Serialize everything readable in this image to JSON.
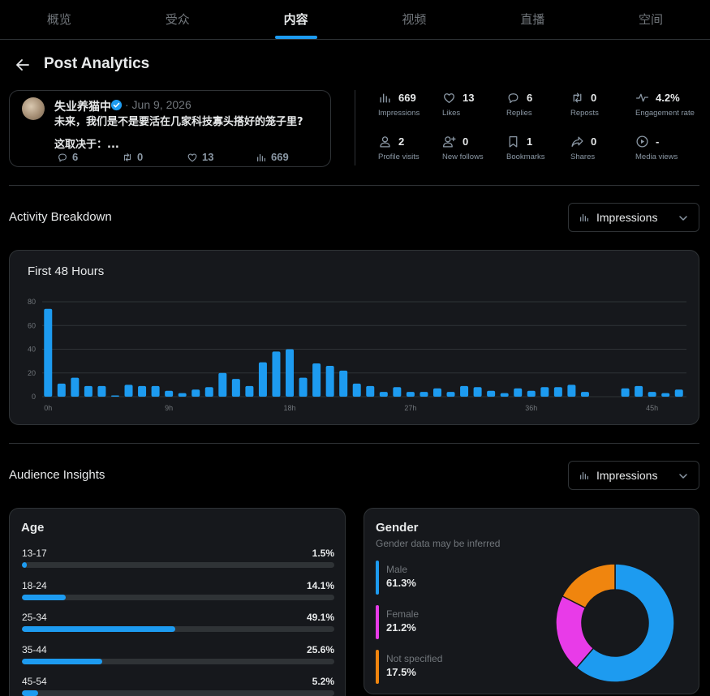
{
  "tabs": [
    {
      "label": "概览",
      "active": false
    },
    {
      "label": "受众",
      "active": false
    },
    {
      "label": "内容",
      "active": true
    },
    {
      "label": "视频",
      "active": false
    },
    {
      "label": "直播",
      "active": false
    },
    {
      "label": "空间",
      "active": false
    }
  ],
  "header": {
    "title": "Post Analytics"
  },
  "post": {
    "author": "失业养猫中",
    "date": "· Jun 9, 2026",
    "text_line1": "未来，我们是不是要活在几家科技寡头搭好的笼子里?",
    "text_line2": "这取决于：...",
    "stats": {
      "replies": "6",
      "reposts": "0",
      "likes": "13",
      "views": "669"
    }
  },
  "metrics": [
    {
      "icon": "bar-chart-icon",
      "value": "669",
      "label": "Impressions"
    },
    {
      "icon": "heart-icon",
      "value": "13",
      "label": "Likes"
    },
    {
      "icon": "reply-icon",
      "value": "6",
      "label": "Replies"
    },
    {
      "icon": "repost-icon",
      "value": "0",
      "label": "Reposts"
    },
    {
      "icon": "pulse-icon",
      "value": "4.2%",
      "label": "Engagement rate"
    },
    {
      "icon": "person-icon",
      "value": "2",
      "label": "Profile visits"
    },
    {
      "icon": "add-person-icon",
      "value": "0",
      "label": "New follows"
    },
    {
      "icon": "bookmark-icon",
      "value": "1",
      "label": "Bookmarks"
    },
    {
      "icon": "share-icon",
      "value": "0",
      "label": "Shares"
    },
    {
      "icon": "play-icon",
      "value": "-",
      "label": "Media views"
    }
  ],
  "activity": {
    "title": "Activity Breakdown",
    "dropdown_label": "Impressions"
  },
  "chart_data": {
    "type": "bar",
    "title": "First 48 Hours",
    "xlabel": "",
    "ylabel": "",
    "ylim": [
      0,
      80
    ],
    "yticks": [
      0,
      20,
      40,
      60,
      80
    ],
    "xtick_labels": [
      "0h",
      "9h",
      "18h",
      "27h",
      "36h",
      "45h"
    ],
    "xtick_hours": [
      0,
      9,
      18,
      27,
      36,
      45
    ],
    "grid": true,
    "color": "#1d9bf0",
    "hours": [
      0,
      1,
      2,
      3,
      4,
      5,
      6,
      7,
      8,
      9,
      10,
      11,
      12,
      13,
      14,
      15,
      16,
      17,
      18,
      19,
      20,
      21,
      22,
      23,
      24,
      25,
      26,
      27,
      28,
      29,
      30,
      31,
      32,
      33,
      34,
      35,
      36,
      37,
      38,
      39,
      40,
      41,
      42,
      43,
      44,
      45,
      46,
      47
    ],
    "values": [
      74,
      11,
      16,
      9,
      9,
      1,
      10,
      9,
      9,
      5,
      3,
      6,
      8,
      20,
      15,
      9,
      29,
      38,
      40,
      16,
      28,
      26,
      22,
      11,
      9,
      4,
      8,
      4,
      4,
      7,
      4,
      9,
      8,
      5,
      3,
      7,
      5,
      8,
      8,
      10,
      4,
      0,
      0,
      7,
      9,
      4,
      3,
      6
    ]
  },
  "audience": {
    "title": "Audience Insights",
    "dropdown_label": "Impressions"
  },
  "age": {
    "title": "Age",
    "rows": [
      {
        "label": "13-17",
        "pct": "1.5%",
        "value": 1.5
      },
      {
        "label": "18-24",
        "pct": "14.1%",
        "value": 14.1
      },
      {
        "label": "25-34",
        "pct": "49.1%",
        "value": 49.1
      },
      {
        "label": "35-44",
        "pct": "25.6%",
        "value": 25.6
      },
      {
        "label": "45-54",
        "pct": "5.2%",
        "value": 5.2
      }
    ]
  },
  "gender": {
    "title": "Gender",
    "subtitle": "Gender data may be inferred",
    "items": [
      {
        "label": "Male",
        "pct": "61.3%",
        "value": 61.3,
        "color": "#1d9bf0"
      },
      {
        "label": "Female",
        "pct": "21.2%",
        "value": 21.2,
        "color": "#e83be8"
      },
      {
        "label": "Not specified",
        "pct": "17.5%",
        "value": 17.5,
        "color": "#f0850e"
      }
    ]
  }
}
